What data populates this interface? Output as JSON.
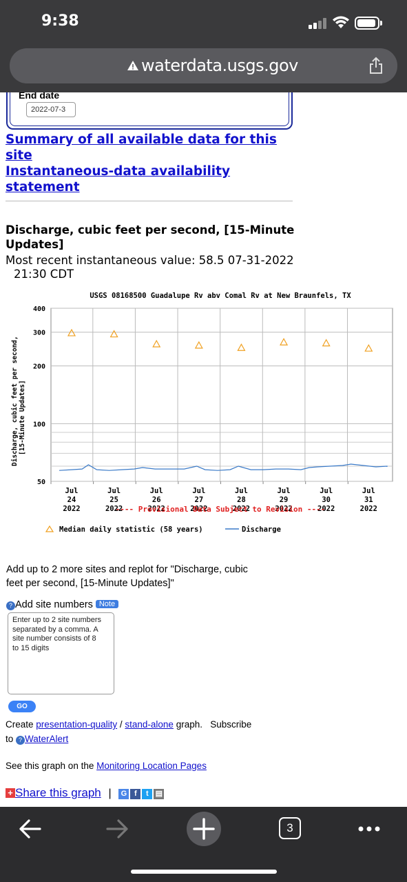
{
  "status_bar": {
    "time": "9:38"
  },
  "browser": {
    "url": "waterdata.usgs.gov"
  },
  "form": {
    "end_date_label": "End date",
    "end_date_value": "2022-07-3"
  },
  "links": {
    "summary_line1": "Summary of all available data for this",
    "summary_line2": "site",
    "availability_line1": "Instantaneous-data availability",
    "availability_line2": "statement"
  },
  "section": {
    "title_line1": "Discharge, cubic feet per second, [15-Minute",
    "title_line2": "Updates]",
    "recent_line1": "Most recent instantaneous value: 58.5 07-31-2022",
    "recent_line2": "21:30 CDT"
  },
  "chart_data": {
    "type": "line",
    "title": "USGS 08168500 Guadalupe Rv abv Comal Rv at New Braunfels, TX",
    "ylabel_line1": "Discharge, cubic feet per second,",
    "ylabel_line2": "[15-Minute Updates]",
    "yscale": "log",
    "ylim": [
      50,
      400
    ],
    "yticks": [
      {
        "value": 400,
        "label": "400"
      },
      {
        "value": 300,
        "label": "300"
      },
      {
        "value": 200,
        "label": "200"
      },
      {
        "value": 100,
        "label": "100"
      },
      {
        "value": 50,
        "label": "50"
      }
    ],
    "minor_gridlines": [
      60,
      70,
      80,
      90
    ],
    "categories": [
      [
        "Jul",
        "24",
        "2022"
      ],
      [
        "Jul",
        "25",
        "2022"
      ],
      [
        "Jul",
        "26",
        "2022"
      ],
      [
        "Jul",
        "27",
        "2022"
      ],
      [
        "Jul",
        "28",
        "2022"
      ],
      [
        "Jul",
        "29",
        "2022"
      ],
      [
        "Jul",
        "30",
        "2022"
      ],
      [
        "Jul",
        "31",
        "2022"
      ]
    ],
    "provisional_note": "---- Provisional Data Subject to Revision ----",
    "series": [
      {
        "name": "Median daily statistic (58 years)",
        "marker": "triangle",
        "color": "#f0a020",
        "values": [
          297,
          293,
          260,
          256,
          249,
          266,
          263,
          247
        ]
      },
      {
        "name": "Discharge",
        "color": "#3a7ac8",
        "x": [
          0,
          0.3,
          0.55,
          0.7,
          0.9,
          1.2,
          1.5,
          1.8,
          2.0,
          2.3,
          2.6,
          3.0,
          3.3,
          3.5,
          3.8,
          4.1,
          4.3,
          4.6,
          4.9,
          5.2,
          5.5,
          5.8,
          6.0,
          6.2,
          6.5,
          6.8,
          7.0,
          7.3,
          7.6,
          8.0,
          8.4
        ],
        "values": [
          57,
          57.5,
          58,
          61,
          57.5,
          57,
          57.5,
          58,
          59,
          58,
          58,
          58,
          60,
          57.5,
          57,
          57.5,
          60,
          57.5,
          57.5,
          58,
          58,
          57.5,
          59,
          59.5,
          60,
          60.5,
          61.5,
          60.5,
          59.5,
          60,
          59.5
        ]
      }
    ],
    "legend": [
      "Median daily statistic (58 years)",
      "Discharge"
    ]
  },
  "add_sites": {
    "text_line1": "Add up to 2 more sites and replot for \"Discharge, cubic",
    "text_line2": "feet per second, [15-Minute Updates]\"",
    "label": "Add site numbers",
    "note_badge": "Note",
    "placeholder_line1": "Enter up to 2 site numbers",
    "placeholder_line2": "separated by a comma. A",
    "placeholder_line3": "site number consists of 8",
    "placeholder_line4": "to 15 digits",
    "go_label": "GO"
  },
  "create_para": {
    "create": "Create ",
    "presentation": "presentation-quality",
    "slash": " / ",
    "standalone": "stand-alone",
    "graph": " graph.   Subscribe",
    "to": "to ",
    "wateralert": "WaterAlert"
  },
  "monitoring": {
    "prefix": "See this graph on the ",
    "link": "Monitoring Location Pages"
  },
  "share": {
    "label": "Share this graph",
    "sep": "|"
  },
  "bottom_nav": {
    "tab_count": "3"
  }
}
